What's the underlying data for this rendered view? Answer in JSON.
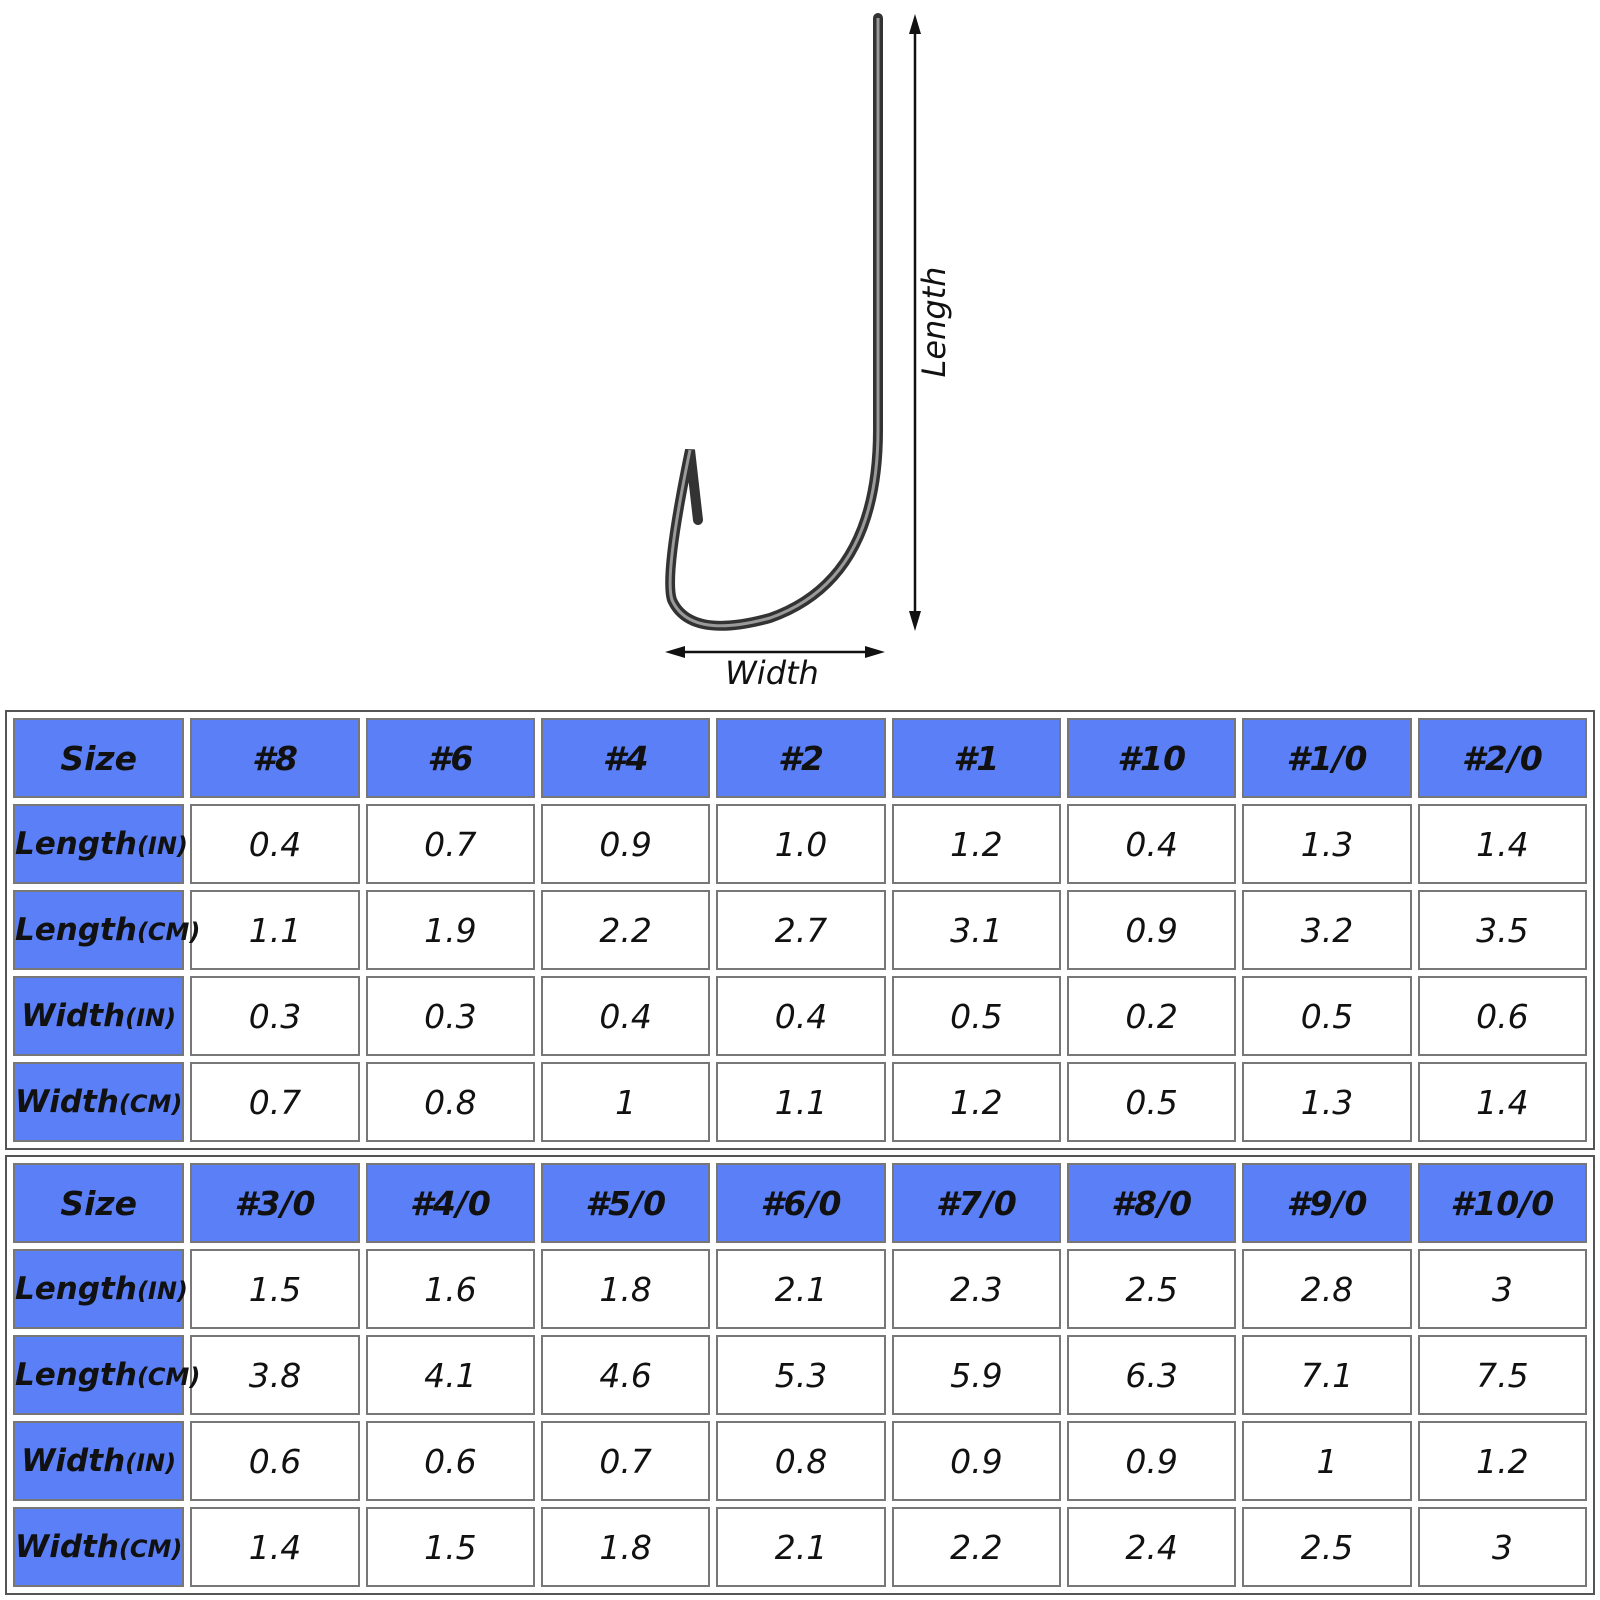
{
  "diagram": {
    "length_label": "Length",
    "width_label": "Width"
  },
  "tables": [
    {
      "header": [
        "Size",
        "#8",
        "#6",
        "#4",
        "#2",
        "#1",
        "#10",
        "#1/0",
        "#2/0"
      ],
      "rows": [
        {
          "label": "Length",
          "unit": "(IN)",
          "cells": [
            "0.4",
            "0.7",
            "0.9",
            "1.0",
            "1.2",
            "0.4",
            "1.3",
            "1.4"
          ]
        },
        {
          "label": "Length",
          "unit": "(CM)",
          "cells": [
            "1.1",
            "1.9",
            "2.2",
            "2.7",
            "3.1",
            "0.9",
            "3.2",
            "3.5"
          ]
        },
        {
          "label": "Width",
          "unit": "(IN)",
          "cells": [
            "0.3",
            "0.3",
            "0.4",
            "0.4",
            "0.5",
            "0.2",
            "0.5",
            "0.6"
          ]
        },
        {
          "label": "Width",
          "unit": "(CM)",
          "cells": [
            "0.7",
            "0.8",
            "1",
            "1.1",
            "1.2",
            "0.5",
            "1.3",
            "1.4"
          ]
        }
      ]
    },
    {
      "header": [
        "Size",
        "#3/0",
        "#4/0",
        "#5/0",
        "#6/0",
        "#7/0",
        "#8/0",
        "#9/0",
        "#10/0"
      ],
      "rows": [
        {
          "label": "Length",
          "unit": "(IN)",
          "cells": [
            "1.5",
            "1.6",
            "1.8",
            "2.1",
            "2.3",
            "2.5",
            "2.8",
            "3"
          ]
        },
        {
          "label": "Length",
          "unit": "(CM)",
          "cells": [
            "3.8",
            "4.1",
            "4.6",
            "5.3",
            "5.9",
            "6.3",
            "7.1",
            "7.5"
          ]
        },
        {
          "label": "Width",
          "unit": "(IN)",
          "cells": [
            "0.6",
            "0.6",
            "0.7",
            "0.8",
            "0.9",
            "0.9",
            "1",
            "1.2"
          ]
        },
        {
          "label": "Width",
          "unit": "(CM)",
          "cells": [
            "1.4",
            "1.5",
            "1.8",
            "2.1",
            "2.2",
            "2.4",
            "2.5",
            "3"
          ]
        }
      ]
    }
  ]
}
